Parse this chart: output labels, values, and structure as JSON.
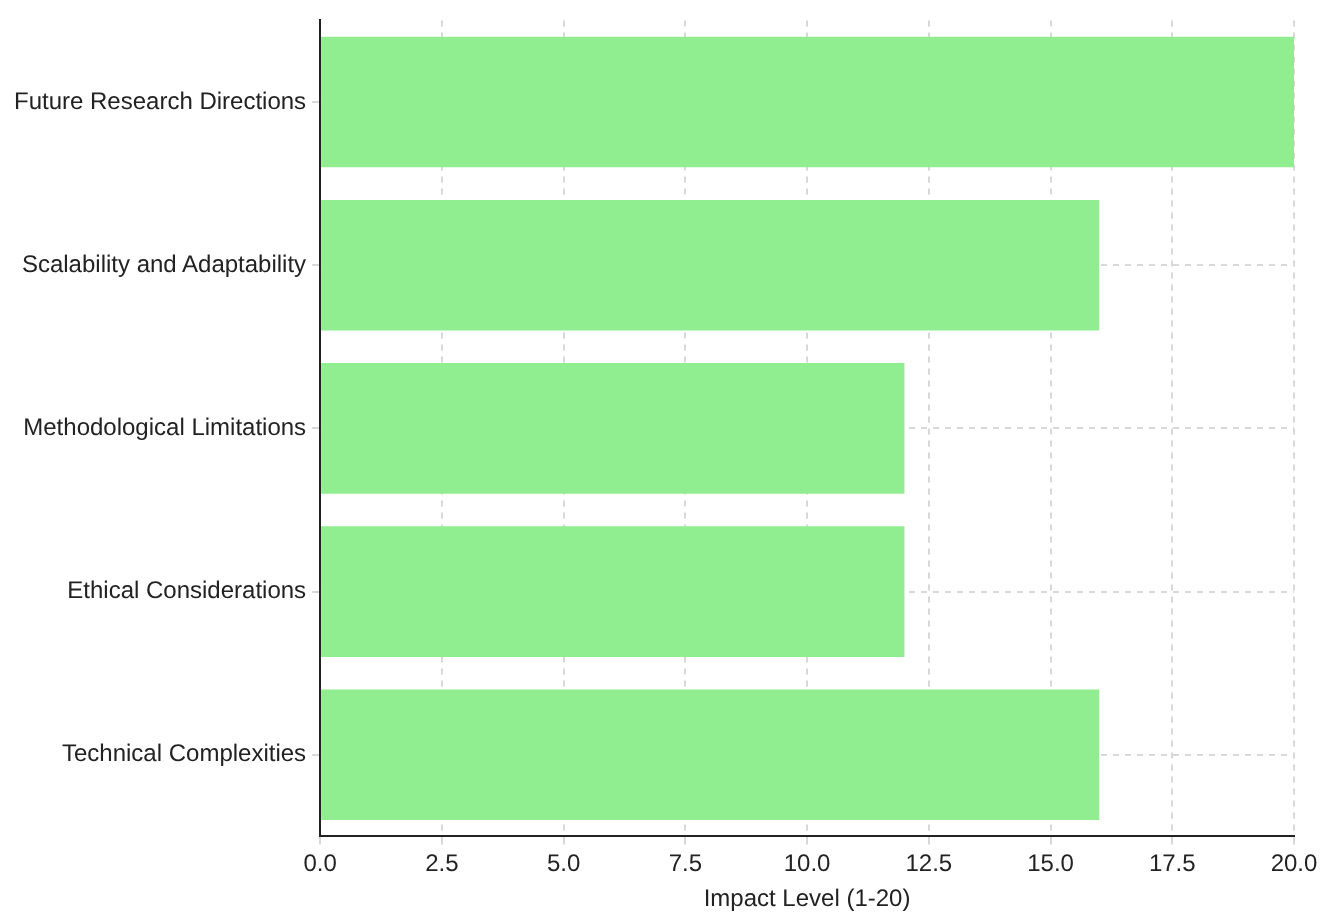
{
  "chart_data": {
    "type": "bar",
    "orientation": "horizontal",
    "xlabel": "Impact Level (1-20)",
    "categories": [
      "Future Research Directions",
      "Scalability and Adaptability",
      "Methodological Limitations",
      "Ethical Considerations",
      "Technical Complexities"
    ],
    "values": [
      20,
      16,
      12,
      12,
      16
    ],
    "color": "#90ee90",
    "xlim": [
      0,
      20
    ],
    "xticks": [
      {
        "value": 0,
        "label": "0.0"
      },
      2.5,
      {
        "value": 5,
        "label": "5.0"
      },
      7.5,
      {
        "value": 10,
        "label": "10.0"
      },
      12.5,
      {
        "value": 15,
        "label": "15.0"
      },
      17.5,
      {
        "value": 20,
        "label": "20.0"
      }
    ],
    "grid": true
  }
}
